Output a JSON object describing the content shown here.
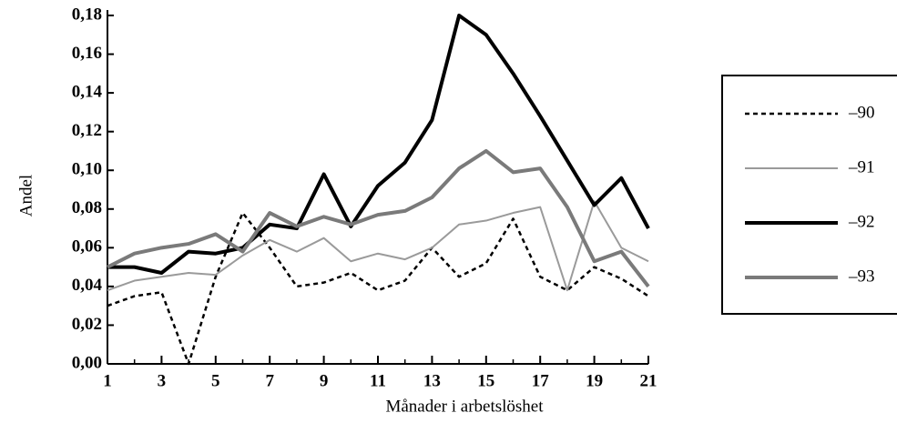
{
  "chart_data": {
    "type": "line",
    "xlabel": "Månader i arbetslöshet",
    "ylabel": "Andel",
    "x": [
      1,
      2,
      3,
      4,
      5,
      6,
      7,
      8,
      9,
      10,
      11,
      12,
      13,
      14,
      15,
      16,
      17,
      18,
      19,
      20,
      21
    ],
    "series": [
      {
        "name": "–90",
        "color": "#000000",
        "width": 2.5,
        "dashed": true,
        "values": [
          0.03,
          0.035,
          0.037,
          0.0,
          0.045,
          0.078,
          0.06,
          0.04,
          0.042,
          0.047,
          0.038,
          0.043,
          0.06,
          0.045,
          0.052,
          0.075,
          0.045,
          0.038,
          0.05,
          0.044,
          0.035
        ]
      },
      {
        "name": "–91",
        "color": "#9a9a9a",
        "width": 2,
        "dashed": false,
        "values": [
          0.038,
          0.043,
          0.045,
          0.047,
          0.046,
          0.056,
          0.064,
          0.058,
          0.065,
          0.053,
          0.057,
          0.054,
          0.06,
          0.072,
          0.074,
          0.078,
          0.081,
          0.038,
          0.084,
          0.06,
          0.053
        ]
      },
      {
        "name": "–92",
        "color": "#000000",
        "width": 4,
        "dashed": false,
        "values": [
          0.05,
          0.05,
          0.047,
          0.058,
          0.057,
          0.06,
          0.072,
          0.07,
          0.098,
          0.071,
          0.092,
          0.104,
          0.126,
          0.18,
          0.17,
          0.15,
          0.128,
          0.105,
          0.082,
          0.096,
          0.07
        ]
      },
      {
        "name": "–93",
        "color": "#7a7a7a",
        "width": 4,
        "dashed": false,
        "values": [
          0.05,
          0.057,
          0.06,
          0.062,
          0.067,
          0.058,
          0.078,
          0.071,
          0.076,
          0.072,
          0.077,
          0.079,
          0.086,
          0.101,
          0.11,
          0.099,
          0.101,
          0.081,
          0.053,
          0.058,
          0.04
        ]
      }
    ],
    "xlim": [
      1,
      21
    ],
    "xticks": [
      1,
      3,
      5,
      7,
      9,
      11,
      13,
      15,
      17,
      19,
      21
    ],
    "ylim": [
      0,
      0.18
    ],
    "yticks": [
      {
        "value": 0,
        "label": "0,00"
      },
      {
        "value": 0.02,
        "label": "0,02"
      },
      {
        "value": 0.04,
        "label": "0,04"
      },
      {
        "value": 0.06,
        "label": "0,06"
      },
      {
        "value": 0.08,
        "label": "0,08"
      },
      {
        "value": 0.1,
        "label": "0,10"
      },
      {
        "value": 0.12,
        "label": "0,12"
      },
      {
        "value": 0.14,
        "label": "0,14"
      },
      {
        "value": 0.16,
        "label": "0,16"
      },
      {
        "value": 0.18,
        "label": "0,18"
      }
    ],
    "grid": false
  }
}
